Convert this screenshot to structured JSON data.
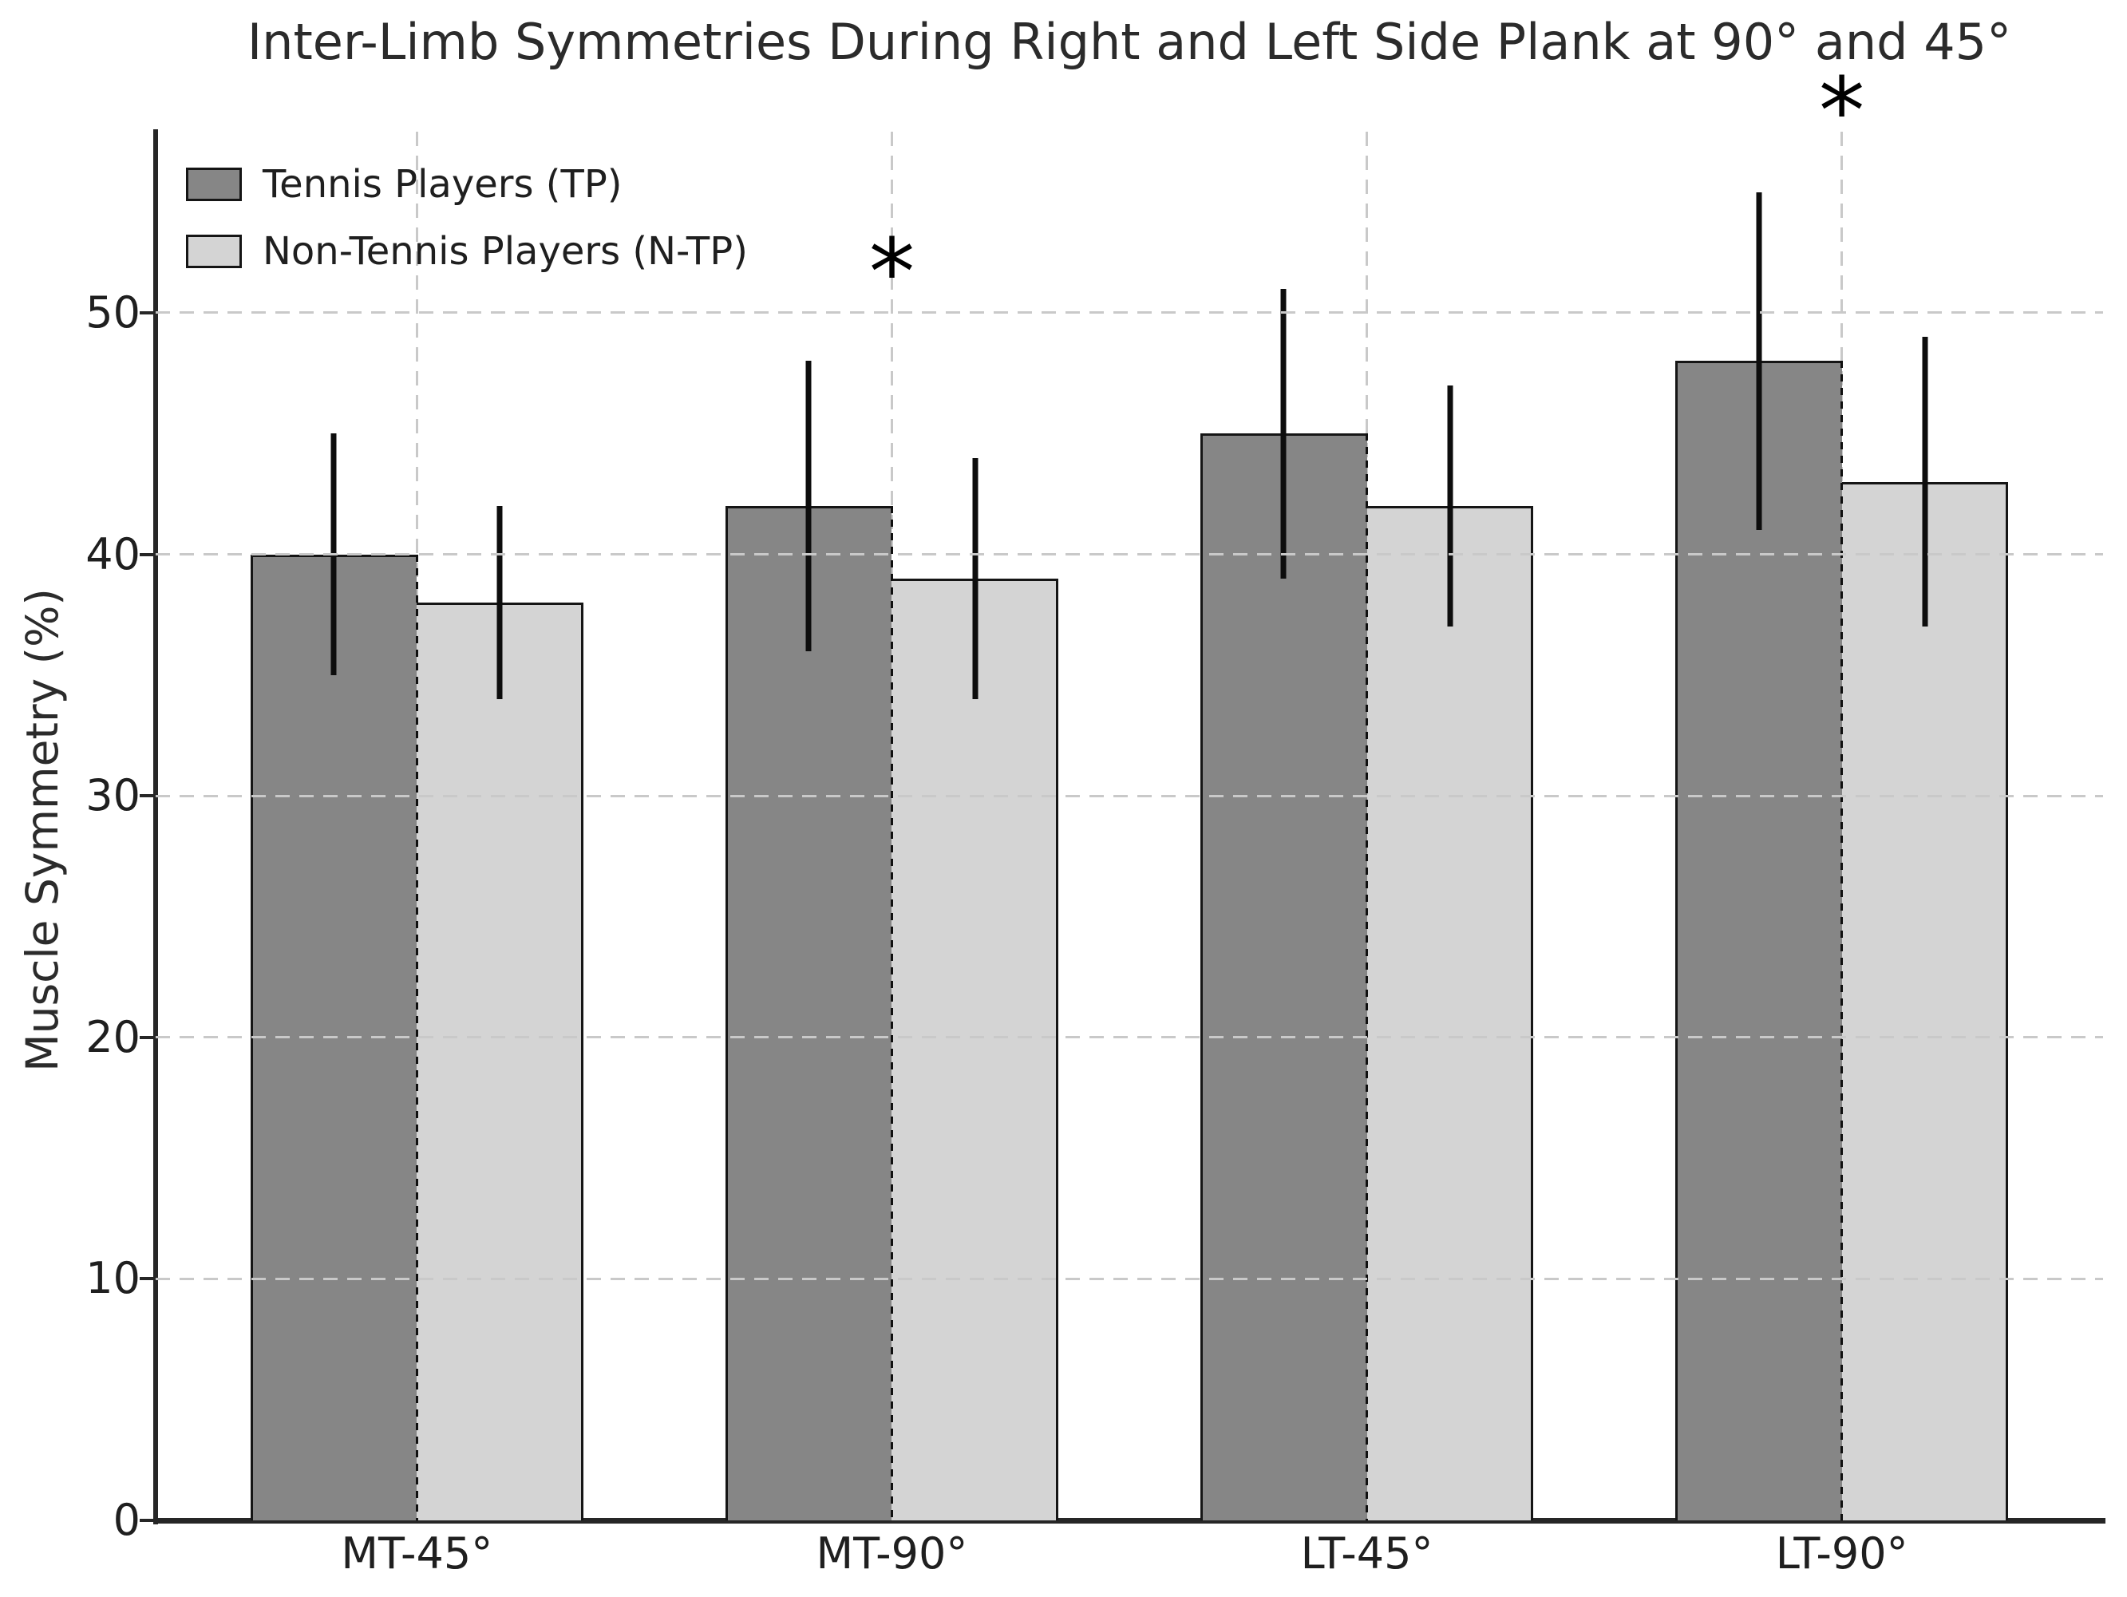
{
  "chart_data": {
    "type": "bar",
    "title": "Inter-Limb Symmetries During Right and Left Side Plank at 90° and 45°",
    "ylabel": "Muscle Symmetry (%)",
    "xlabel": "",
    "categories": [
      "MT-45°",
      "MT-90°",
      "LT-45°",
      "LT-90°"
    ],
    "series": [
      {
        "name": "Tennis Players (TP)",
        "color": "#868686",
        "values": [
          40,
          42,
          45,
          48
        ],
        "errors": [
          5,
          6,
          6,
          7
        ],
        "error_low": [
          35,
          36,
          39,
          41
        ],
        "error_high": [
          45,
          48,
          51,
          55
        ]
      },
      {
        "name": "Non-Tennis Players (N-TP)",
        "color": "#d4d4d4",
        "values": [
          38,
          39,
          42,
          43
        ],
        "errors": [
          4,
          5,
          5,
          6
        ],
        "error_low": [
          34,
          34,
          37,
          37
        ],
        "error_high": [
          42,
          44,
          47,
          49
        ]
      }
    ],
    "ylim": [
      0,
      57.5
    ],
    "xlim": [
      -0.55,
      3.55
    ],
    "yticks": [
      0,
      10,
      20,
      30,
      40,
      50
    ],
    "bar_width": 0.35,
    "grid": "dashed",
    "grid_color": "#c9c9c9",
    "edge_color": "#151515",
    "errorbar_color": "#0d0d0d",
    "legend_position": "upper-left",
    "annotations": [
      {
        "category_index": 1,
        "y": 52.3,
        "symbol": "*"
      },
      {
        "category_index": 3,
        "y": 59.0,
        "symbol": "*"
      }
    ]
  }
}
